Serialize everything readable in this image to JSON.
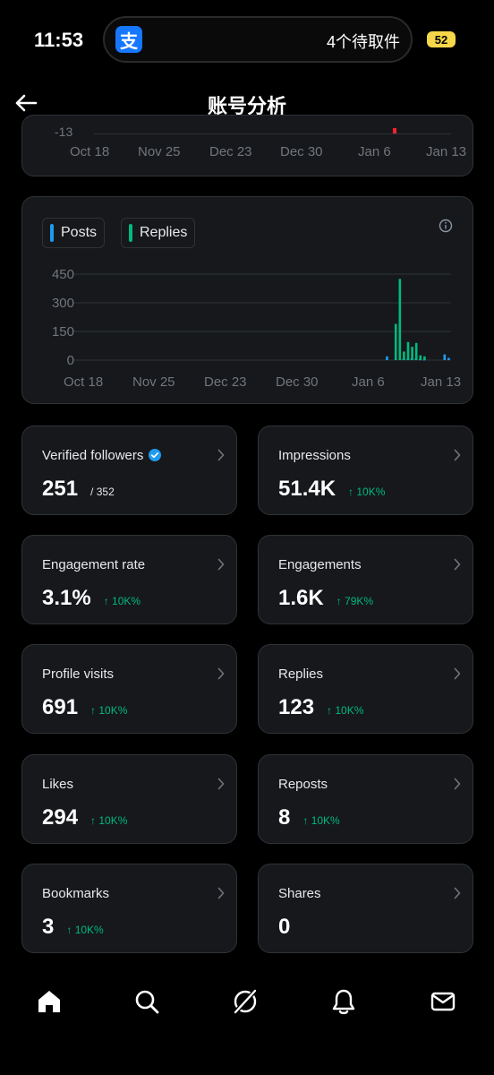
{
  "status_bar": {
    "time": "11:53",
    "app_icon_glyph": "支",
    "notification_text": "4个待取件",
    "battery": "52"
  },
  "header": {
    "title": "账号分析"
  },
  "top_chart": {
    "y_tick": "-13",
    "x_labels": [
      "Oct 18",
      "Nov 25",
      "Dec 23",
      "Dec 30",
      "Jan 6",
      "Jan 13"
    ]
  },
  "chart_data": {
    "type": "bar",
    "legend": [
      "Posts",
      "Replies"
    ],
    "colors": {
      "Posts": "#1d9bf0",
      "Replies": "#00ba7c"
    },
    "ylim": [
      0,
      450
    ],
    "y_ticks": [
      "450",
      "300",
      "150",
      "0"
    ],
    "x_labels": [
      "Oct 18",
      "Nov 25",
      "Dec 23",
      "Dec 30",
      "Jan 6",
      "Jan 13"
    ],
    "series": [
      {
        "name": "Posts",
        "x": [
          "Dec 30",
          "Jan 3",
          "Jan 4",
          "Jan 5",
          "Jan 6",
          "Jan 7",
          "Jan 8",
          "Jan 13",
          "Jan 14"
        ],
        "values": [
          20,
          8,
          5,
          10,
          8,
          4,
          3,
          30,
          12
        ]
      },
      {
        "name": "Replies",
        "x": [
          "Jan 2",
          "Jan 3",
          "Jan 4",
          "Jan 5",
          "Jan 6",
          "Jan 7",
          "Jan 8",
          "Jan 9"
        ],
        "values": [
          190,
          425,
          45,
          95,
          70,
          90,
          25,
          20
        ]
      }
    ]
  },
  "stats": [
    {
      "label": "Verified followers",
      "value": "251",
      "sub": "/ 352",
      "change": ""
    },
    {
      "label": "Impressions",
      "value": "51.4K",
      "sub": "",
      "change": "↑ 10K%"
    },
    {
      "label": "Engagement rate",
      "value": "3.1%",
      "sub": "",
      "change": "↑ 10K%"
    },
    {
      "label": "Engagements",
      "value": "1.6K",
      "sub": "",
      "change": "↑ 79K%"
    },
    {
      "label": "Profile visits",
      "value": "691",
      "sub": "",
      "change": "↑ 10K%"
    },
    {
      "label": "Replies",
      "value": "123",
      "sub": "",
      "change": "↑ 10K%"
    },
    {
      "label": "Likes",
      "value": "294",
      "sub": "",
      "change": "↑ 10K%"
    },
    {
      "label": "Reposts",
      "value": "8",
      "sub": "",
      "change": "↑ 10K%"
    },
    {
      "label": "Bookmarks",
      "value": "3",
      "sub": "",
      "change": "↑ 10K%"
    },
    {
      "label": "Shares",
      "value": "0",
      "sub": "",
      "change": ""
    }
  ],
  "bottom_nav": [
    "home-icon",
    "search-icon",
    "grok-icon",
    "notifications-icon",
    "messages-icon"
  ]
}
